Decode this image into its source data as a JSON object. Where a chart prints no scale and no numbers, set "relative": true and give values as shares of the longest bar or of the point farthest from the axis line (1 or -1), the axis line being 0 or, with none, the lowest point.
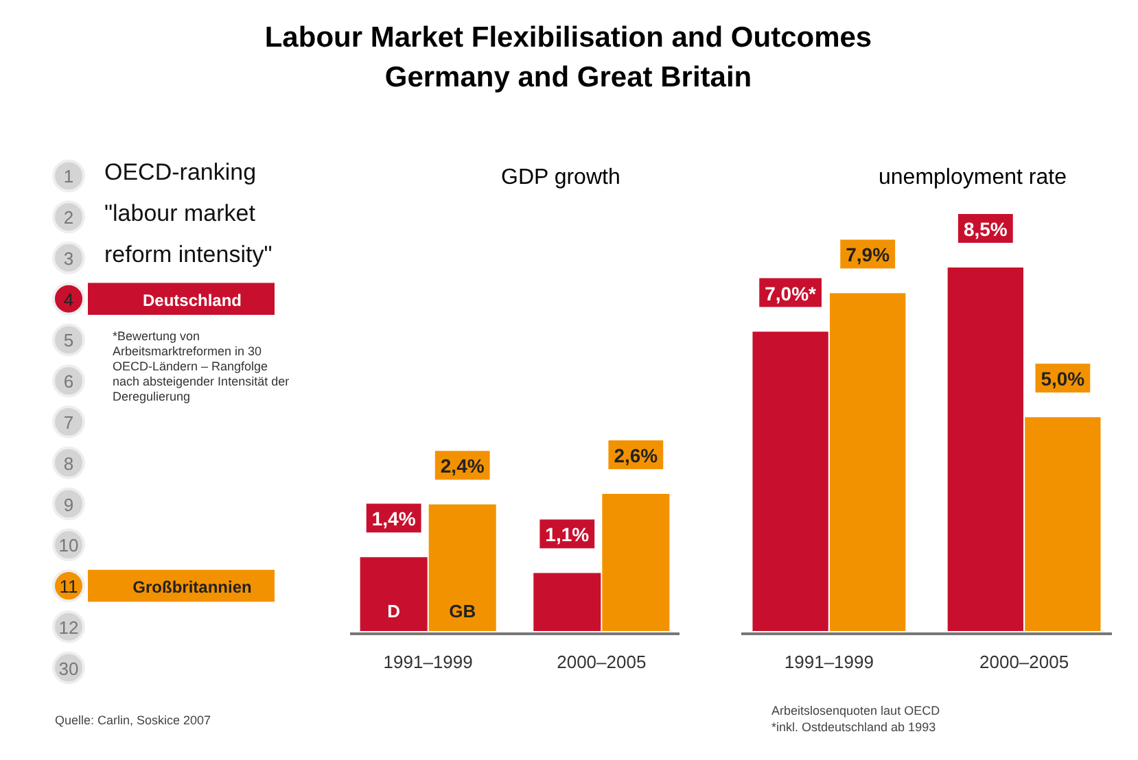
{
  "chart_data": [
    {
      "type": "bar",
      "orientation": "horizontal",
      "relative": true,
      "title": "Labour Market Flexibilisation and Outcomes\nGermany and Great Britain",
      "subtitle": "OECD-ranking \"labour market reform intensity\"",
      "categories": [
        "1",
        "2",
        "3",
        "4",
        "5",
        "6",
        "7",
        "8",
        "9",
        "10",
        "11",
        "12",
        "30"
      ],
      "series": [
        {
          "name": "Deutschland",
          "color": "#c8102e",
          "values": [
            null,
            null,
            null,
            1,
            null,
            null,
            null,
            null,
            null,
            null,
            null,
            null,
            null
          ]
        },
        {
          "name": "Großbritannien",
          "color": "#f39200",
          "values": [
            null,
            null,
            null,
            null,
            null,
            null,
            null,
            null,
            null,
            null,
            1,
            null,
            null
          ]
        }
      ],
      "annotations": [
        "*Bewertung von Arbeitsmarktreformen in 30 OECD-Ländern – Rangfolge nach absteigender Intensität der Deregulierung",
        "Quelle: Carlin, Soskice 2007"
      ]
    },
    {
      "type": "bar",
      "title": "GDP growth",
      "categories": [
        "1991–1999",
        "2000–2005"
      ],
      "legend": false,
      "series": [
        {
          "name": "D",
          "color": "#c8102e",
          "values": [
            1.4,
            1.1
          ],
          "value_labels": [
            "1,4%",
            "1,1%"
          ]
        },
        {
          "name": "GB",
          "color": "#f39200",
          "values": [
            2.4,
            2.6
          ],
          "value_labels": [
            "2,4%",
            "2,6%"
          ]
        }
      ]
    },
    {
      "type": "bar",
      "title": "unemployment rate",
      "categories": [
        "1991–1999",
        "2000–2005"
      ],
      "legend": false,
      "series": [
        {
          "color": "#c8102e",
          "values": [
            7.0,
            8.5
          ],
          "value_labels": [
            "7,0%*",
            "8,5%"
          ]
        },
        {
          "color": "#f39200",
          "values": [
            7.9,
            5.0
          ],
          "value_labels": [
            "7,9%",
            "5,0%"
          ]
        }
      ],
      "annotations": [
        "Arbeitslosenquoten laut OECD",
        "*inkl. Ostdeutschland ab 1993"
      ]
    }
  ]
}
